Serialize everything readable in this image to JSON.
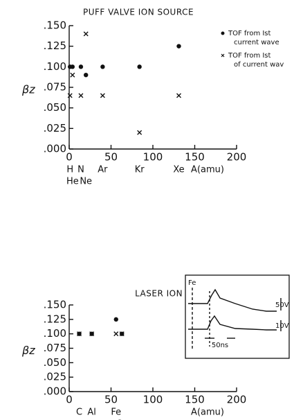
{
  "chart_data": [
    {
      "type": "scatter",
      "title": "PUFF VALVE ION SOURCE",
      "ylabel": "βz",
      "xlabel": "A(amu)",
      "xlim": [
        0,
        200
      ],
      "ylim": [
        0,
        0.15
      ],
      "xticks": [
        0,
        50,
        100,
        150,
        200
      ],
      "yticks": [
        {
          "value": 0,
          "label": ".000"
        },
        {
          "value": 0.025,
          "label": ".025"
        },
        {
          "value": 0.05,
          "label": ".050"
        },
        {
          "value": 0.075,
          "label": ".075"
        },
        {
          "value": 0.1,
          "label": ".100"
        },
        {
          "value": 0.125,
          "label": ".125"
        },
        {
          "value": 0.15,
          "label": ".150"
        }
      ],
      "element_labels": [
        {
          "label": "H",
          "x": 1
        },
        {
          "label": "He",
          "x": 4,
          "row": 2
        },
        {
          "label": "N",
          "x": 14
        },
        {
          "label": "Ne",
          "x": 20,
          "row": 2
        },
        {
          "label": "Ar",
          "x": 40
        },
        {
          "label": "Kr",
          "x": 84
        },
        {
          "label": "Xe",
          "x": 131
        }
      ],
      "legend": "upper right",
      "series": [
        {
          "name": "TOF from Ist current wave",
          "marker": "dot",
          "color": "#111",
          "x": [
            1,
            4,
            14,
            20,
            40,
            84,
            131
          ],
          "values": [
            0.1,
            0.1,
            0.1,
            0.09,
            0.1,
            0.1,
            0.125
          ]
        },
        {
          "name": "TOF from Ist of current wav",
          "marker": "x",
          "color": "#111",
          "x": [
            1,
            4,
            14,
            20,
            40,
            84,
            131
          ],
          "values": [
            0.065,
            0.09,
            0.065,
            0.14,
            0.065,
            0.02,
            0.065
          ]
        }
      ]
    },
    {
      "type": "scatter",
      "title": "LASER ION SOURCE",
      "ylabel": "βz",
      "xlabel": "A(amu)",
      "xlim": [
        0,
        200
      ],
      "ylim": [
        0,
        0.15
      ],
      "xticks": [
        0,
        50,
        100,
        150,
        200
      ],
      "yticks": [
        {
          "value": 0,
          "label": ".000"
        },
        {
          "value": 0.025,
          "label": ".025"
        },
        {
          "value": 0.05,
          "label": ".050"
        },
        {
          "value": 0.075,
          "label": ".075"
        },
        {
          "value": 0.1,
          "label": ".100"
        },
        {
          "value": 0.125,
          "label": ".125"
        },
        {
          "value": 0.15,
          "label": ".150"
        }
      ],
      "element_labels": [
        {
          "label": "C",
          "x": 12
        },
        {
          "label": "Al",
          "x": 27
        },
        {
          "label": "Fe",
          "x": 56
        },
        {
          "label": "Cu",
          "x": 63,
          "row": 2
        }
      ],
      "series": [
        {
          "marker": "dot",
          "color": "#111",
          "x": [
            12,
            27,
            63,
            56
          ],
          "values": [
            0.1,
            0.1,
            0.1,
            0.125
          ]
        },
        {
          "marker": "x",
          "color": "#111",
          "x": [
            12,
            27,
            56,
            63
          ],
          "values": [
            0.1,
            0.1,
            0.1,
            0.1
          ]
        }
      ],
      "inset": {
        "labels": [
          "Fe",
          "50V",
          "10V",
          "50ns"
        ]
      }
    }
  ]
}
